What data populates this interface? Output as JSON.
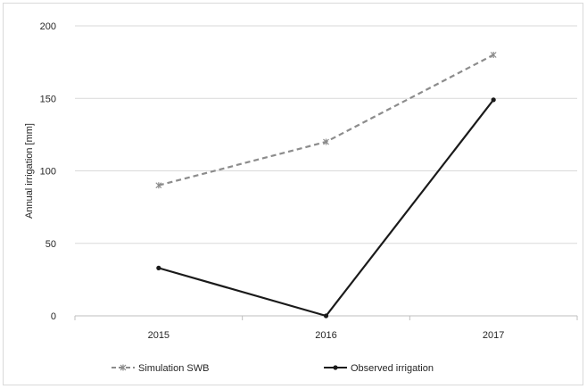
{
  "chart_data": {
    "type": "line",
    "x": [
      "2015",
      "2016",
      "2017"
    ],
    "ylabel": "Annual irrigation [mm]",
    "ylim": [
      0,
      200
    ],
    "yticks": [
      0,
      50,
      100,
      150,
      200
    ],
    "grid": "horizontal",
    "legend_position": "bottom",
    "series": [
      {
        "name": "Simulation SWB",
        "values": [
          90,
          120,
          180
        ],
        "color": "#8c8c8c",
        "line_style": "dashed",
        "marker": "asterisk"
      },
      {
        "name": "Observed irrigation",
        "values": [
          33,
          0,
          149
        ],
        "color": "#1a1a1a",
        "line_style": "solid",
        "marker": "dot"
      }
    ]
  }
}
